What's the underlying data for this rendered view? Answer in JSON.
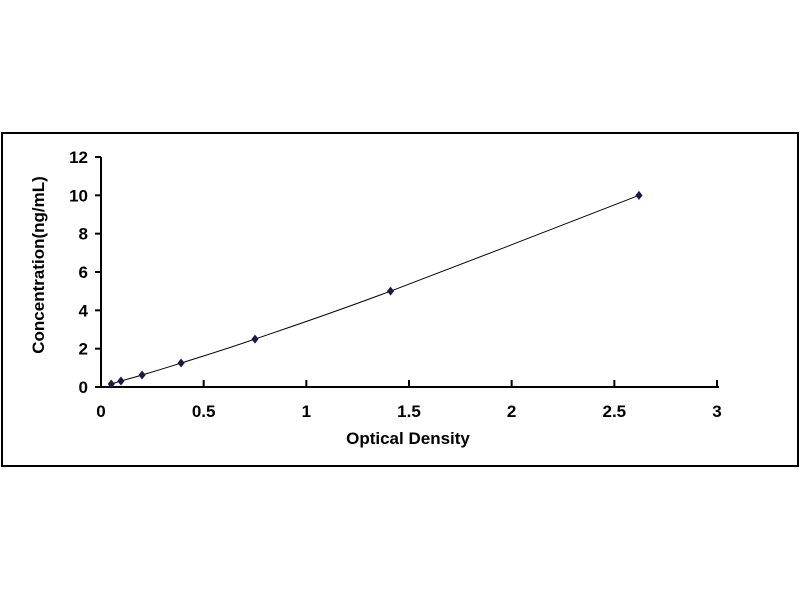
{
  "chart_data": {
    "type": "scatter",
    "title": "",
    "xlabel": "Optical Density",
    "ylabel": "Concentration(ng/mL)",
    "xlim": [
      0,
      3
    ],
    "ylim": [
      0,
      12
    ],
    "x_ticks": [
      "0",
      "0.5",
      "1",
      "1.5",
      "2",
      "2.5",
      "3"
    ],
    "y_ticks": [
      "0",
      "2",
      "4",
      "6",
      "8",
      "10",
      "12"
    ],
    "grid": false,
    "legend": "none",
    "trendline": "smooth curve through points",
    "marker": "diamond",
    "colors": {
      "marker": "#1a1a4a",
      "line": "#000000"
    },
    "series": [
      {
        "x": [
          0.05,
          0.097,
          0.2,
          0.39,
          0.75,
          1.41,
          2.62
        ],
        "y": [
          0.156,
          0.312,
          0.625,
          1.25,
          2.5,
          5,
          10
        ]
      }
    ]
  }
}
